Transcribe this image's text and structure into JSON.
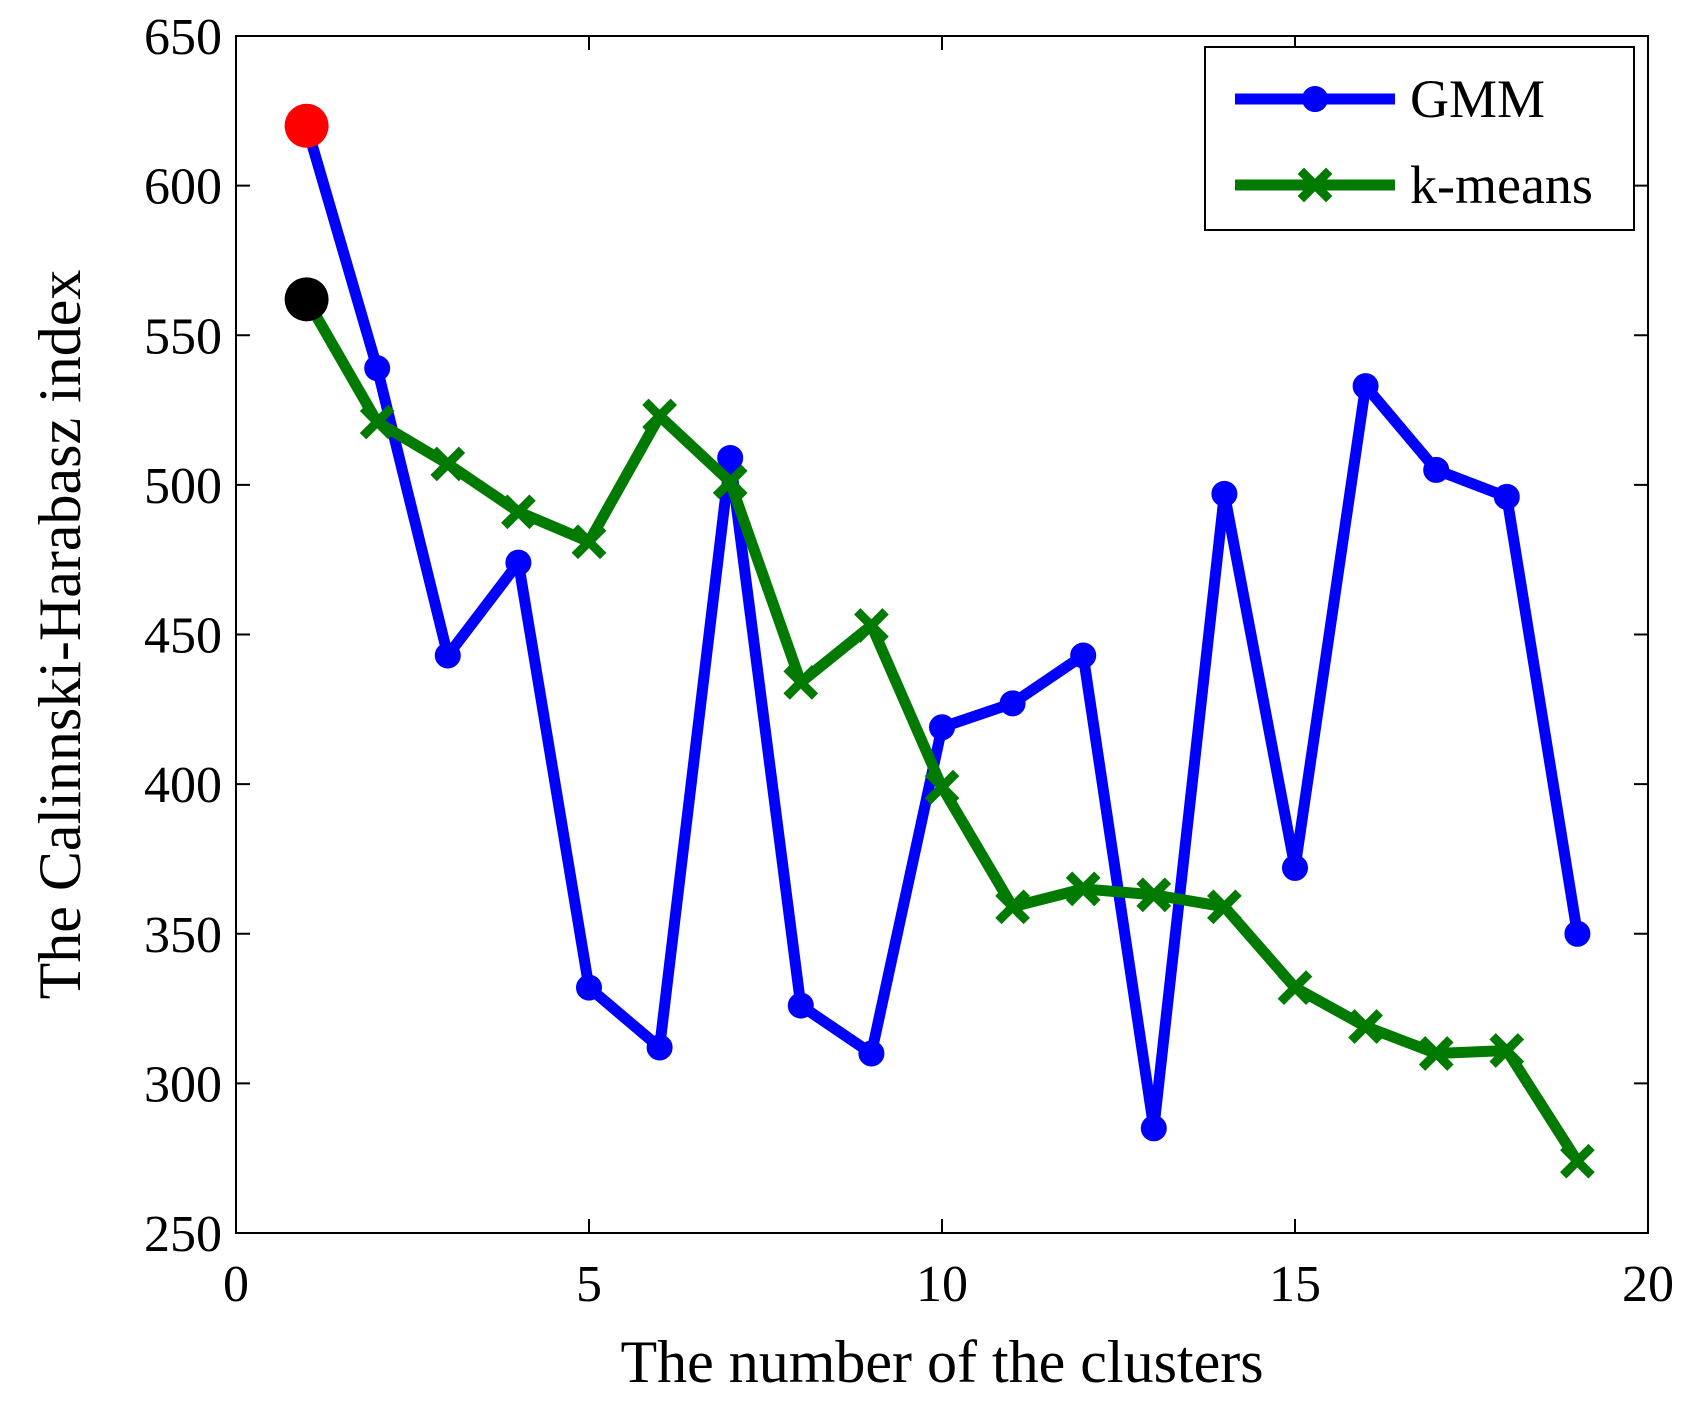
{
  "chart_data": {
    "type": "line",
    "xlabel": "The number of the clusters",
    "ylabel": "The Calinnski-Harabasz index",
    "xlim": [
      0,
      20
    ],
    "ylim": [
      250,
      650
    ],
    "xticks": [
      0,
      5,
      10,
      15,
      20
    ],
    "yticks": [
      250,
      300,
      350,
      400,
      450,
      500,
      550,
      600,
      650
    ],
    "grid": false,
    "legend_position": "top-right",
    "x": [
      1,
      2,
      3,
      4,
      5,
      6,
      7,
      8,
      9,
      10,
      11,
      12,
      13,
      14,
      15,
      16,
      17,
      18,
      19
    ],
    "series": [
      {
        "name": "GMM",
        "color": "#0000ff",
        "marker": "circle",
        "values": [
          620,
          539,
          443,
          474,
          332,
          312,
          509,
          326,
          310,
          419,
          427,
          443,
          285,
          497,
          372,
          533,
          505,
          496,
          350
        ]
      },
      {
        "name": "k-means",
        "color": "#007a00",
        "marker": "x",
        "values": [
          562,
          521,
          507,
          491,
          481,
          523,
          501,
          434,
          453,
          399,
          359,
          365,
          363,
          359,
          332,
          319,
          310,
          311,
          274
        ]
      }
    ],
    "highlights": [
      {
        "x": 1,
        "y": 620,
        "color": "#ff0000"
      },
      {
        "x": 1,
        "y": 562,
        "color": "#000000"
      }
    ]
  }
}
